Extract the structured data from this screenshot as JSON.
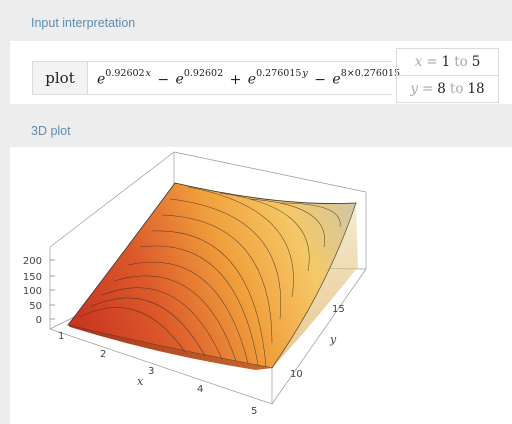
{
  "pods": {
    "input": {
      "title": "Input interpretation",
      "command": "plot",
      "formula": {
        "base": "e",
        "exp1": "0.92602",
        "var1": "x",
        "exp2": "0.92602",
        "exp3": "0.276015",
        "var3": "y",
        "exp4": "8×0.276015",
        "minus": "−",
        "plus": "+"
      },
      "ranges": [
        {
          "var": "x",
          "eq": "=",
          "from": "1",
          "to_word": "to",
          "to": "5"
        },
        {
          "var": "y",
          "eq": "=",
          "from": "8",
          "to_word": "to",
          "to": "18"
        }
      ]
    },
    "plot": {
      "title": "3D plot",
      "z_ticks": [
        "200",
        "150",
        "100",
        "50",
        "0"
      ],
      "x_ticks": [
        "1",
        "2",
        "3",
        "4",
        "5"
      ],
      "y_ticks": [
        "15",
        "10"
      ],
      "x_label": "x",
      "y_label": "y"
    }
  },
  "colors": {
    "background": "#ededed",
    "pod": "#ffffff",
    "title": "#5f8bb0",
    "surface_low": "#cf3a24",
    "surface_mid": "#f2a640",
    "surface_high": "#d6c9a6"
  }
}
